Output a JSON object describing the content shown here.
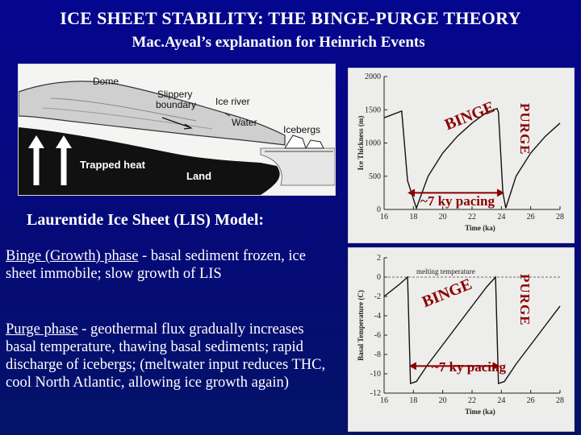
{
  "title": "ICE SHEET STABILITY: THE BINGE-PURGE THEORY",
  "subtitle": "Mac.Ayeal’s explanation for Heinrich Events",
  "diagram": {
    "labels": {
      "dome": "Dome",
      "slippery": "Slippery",
      "boundary": "boundary",
      "ice_river": "Ice river",
      "water": "Water",
      "icebergs": "Icebergs",
      "trapped_heat": "Trapped heat",
      "land": "Land"
    }
  },
  "section_heading": "Laurentide Ice Sheet (LIS) Model:",
  "binge": {
    "term": "Binge (Growth) phase",
    "text": " - basal sediment frozen, ice sheet immobile; slow growth of LIS"
  },
  "purge": {
    "term": "Purge phase",
    "text": " - geothermal flux gradually increases basal temperature, thawing basal sediments; rapid discharge of icebergs; (meltwater input reduces THC, cool North Atlantic, allowing ice growth again)"
  },
  "chart_data": [
    {
      "type": "line",
      "xlabel": "Time (ka)",
      "ylabel": "Ice Thickness (m)",
      "xlim": [
        16,
        28
      ],
      "ylim": [
        0,
        2000
      ],
      "x_ticks": [
        "16",
        "18",
        "20",
        "22",
        "24",
        "26",
        "28"
      ],
      "y_ticks": [
        "0",
        "500",
        "1000",
        "1500",
        "2000"
      ],
      "series": [
        {
          "x": [
            16,
            17.2,
            17.6,
            18.2,
            19,
            20,
            21,
            22,
            23,
            23.7,
            23.8,
            24.1,
            24.3,
            25,
            26,
            27,
            28
          ],
          "values": [
            1380,
            1480,
            430,
            20,
            500,
            850,
            1100,
            1300,
            1460,
            1520,
            1460,
            250,
            20,
            500,
            850,
            1100,
            1300
          ]
        }
      ],
      "annotations": {
        "binge": "BINGE",
        "purge": "PURGE",
        "pacing": "~7 ky pacing"
      }
    },
    {
      "type": "line",
      "xlabel": "Time (ka)",
      "ylabel": "Basal Temperature (C)",
      "xlim": [
        16,
        28
      ],
      "ylim": [
        -12,
        2
      ],
      "x_ticks": [
        "16",
        "18",
        "20",
        "22",
        "24",
        "26",
        "28"
      ],
      "y_ticks": [
        "2",
        "0",
        "-2",
        "-4",
        "-6",
        "-8",
        "-10",
        "-12"
      ],
      "reference_line": {
        "label": "melting temperature",
        "value": 0
      },
      "series": [
        {
          "x": [
            16,
            17,
            17.6,
            17.8,
            18.2,
            19,
            20,
            21,
            22,
            23,
            23.6,
            23.8,
            24.2,
            25,
            26,
            27,
            28
          ],
          "values": [
            -2,
            -0.8,
            0,
            -11,
            -10.8,
            -9,
            -7,
            -5,
            -3,
            -1,
            0,
            -11,
            -10.8,
            -9,
            -7,
            -5,
            -3
          ]
        }
      ],
      "annotations": {
        "binge": "BINGE",
        "purge": "PURGE",
        "pacing": "~7 ky pacing"
      }
    }
  ]
}
